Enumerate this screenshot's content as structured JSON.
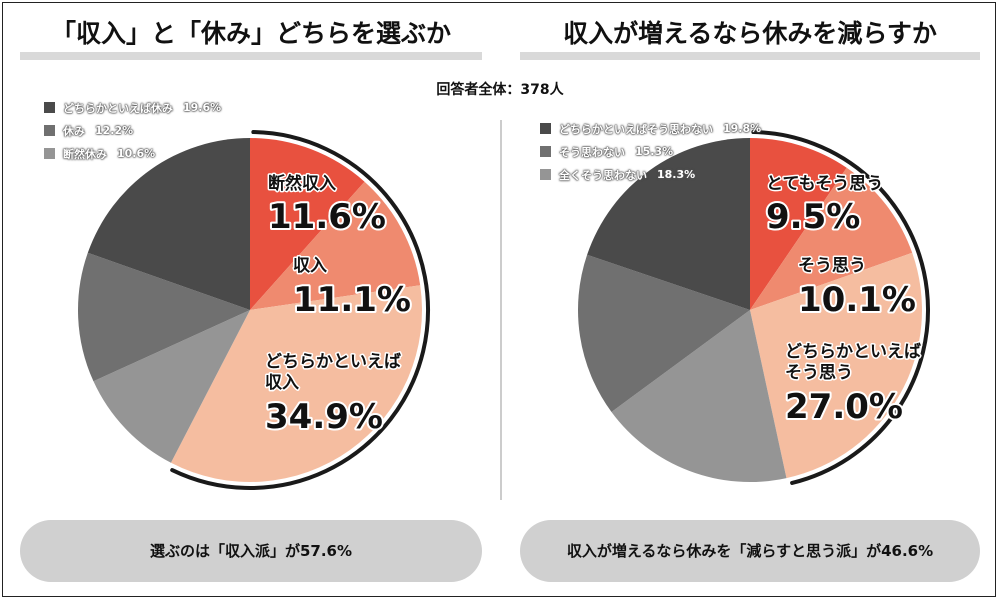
{
  "header": {
    "left_title": "「収入」と「休み」どちらを選ぶか",
    "right_title": "収入が増えるなら休みを減らすか",
    "total": "回答者全体：378人"
  },
  "footer": {
    "left_summary": "選ぶのは「収入派」が57.6%",
    "right_summary": "収入が増えるなら休みを「減らすと思う派」が46.6%"
  },
  "chart_data": [
    {
      "type": "pie",
      "title": "「収入」と「休み」どちらを選ぶか",
      "slices": [
        {
          "label": "断然収入",
          "value": 11.6,
          "value_label": "11.6%",
          "color": "#e8513f",
          "legend": false
        },
        {
          "label": "収入",
          "value": 11.1,
          "value_label": "11.1%",
          "color": "#ef8a6f",
          "legend": false
        },
        {
          "label": "どちらかといえば収入",
          "label_lines": [
            "どちらかといえば",
            "収入"
          ],
          "value": 34.9,
          "value_label": "34.9%",
          "color": "#f5bda0",
          "legend": false
        },
        {
          "label": "断然休み",
          "value": 10.6,
          "value_label": "10.6%",
          "color": "#959595",
          "legend": true
        },
        {
          "label": "休み",
          "value": 12.2,
          "value_label": "12.2%",
          "color": "#707070",
          "legend": true
        },
        {
          "label": "どちらかといえば休み",
          "value": 19.6,
          "value_label": "19.6%",
          "color": "#4a4a4a",
          "legend": true
        }
      ],
      "legend_order": [
        "どちらかといえば休み",
        "休み",
        "断然休み"
      ],
      "highlight_arc": "収入派 57.6%"
    },
    {
      "type": "pie",
      "title": "収入が増えるなら休みを減らすか",
      "slices": [
        {
          "label": "とてもそう思う",
          "value": 9.5,
          "value_label": "9.5%",
          "color": "#e8513f",
          "legend": false
        },
        {
          "label": "そう思う",
          "value": 10.1,
          "value_label": "10.1%",
          "color": "#ef8a6f",
          "legend": false
        },
        {
          "label": "どちらかといえばそう思う",
          "label_lines": [
            "どちらかといえば",
            "そう思う"
          ],
          "value": 27.0,
          "value_label": "27.0%",
          "color": "#f5bda0",
          "legend": false
        },
        {
          "label": "全くそう思わない",
          "value": 18.3,
          "value_label": "18.3%",
          "color": "#959595",
          "legend": true
        },
        {
          "label": "そう思わない",
          "value": 15.3,
          "value_label": "15.3%",
          "color": "#707070",
          "legend": true
        },
        {
          "label": "どちらかといえばそう思わない",
          "value": 19.8,
          "value_label": "19.8%",
          "color": "#4a4a4a",
          "legend": true
        }
      ],
      "legend_order": [
        "どちらかといえばそう思わない",
        "そう思わない",
        "全くそう思わない"
      ],
      "highlight_arc": "減らすと思う派 46.6%"
    }
  ]
}
